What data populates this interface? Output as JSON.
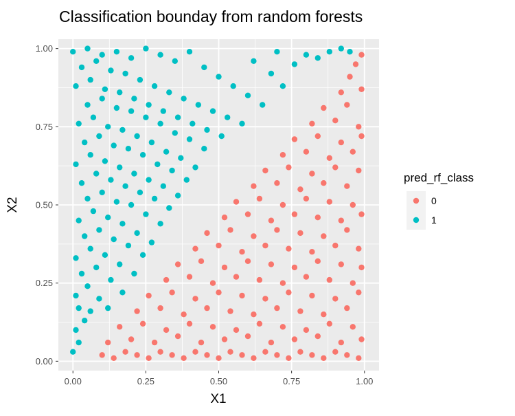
{
  "chart_data": {
    "type": "scatter",
    "title": "Classification bounday from random forests",
    "xlabel": "X1",
    "ylabel": "X2",
    "xlim": [
      -0.05,
      1.05
    ],
    "ylim": [
      -0.03,
      1.03
    ],
    "x_ticks": [
      0.0,
      0.25,
      0.5,
      0.75,
      1.0
    ],
    "y_ticks": [
      0.0,
      0.25,
      0.5,
      0.75,
      1.0
    ],
    "x_tick_labels": [
      "0.00",
      "0.25",
      "0.50",
      "0.75",
      "1.00"
    ],
    "y_tick_labels": [
      "0.00",
      "0.25",
      "0.50",
      "0.75",
      "1.00"
    ],
    "grid": true,
    "legend": {
      "title": "pred_rf_class",
      "position": "right",
      "entries": [
        {
          "label": "0",
          "color": "#F8766D"
        },
        {
          "label": "1",
          "color": "#00BFC4"
        }
      ]
    },
    "colors": {
      "class_0": "#F8766D",
      "class_1": "#00BFC4",
      "panel_background": "#EBEBEB",
      "grid": "#FFFFFF"
    },
    "boundary": {
      "description": "classes split roughly along the diagonal X2 = X1 - 0.05",
      "x": [
        0.0,
        0.15,
        0.3,
        0.5,
        0.7,
        0.9,
        1.0
      ],
      "y": [
        -0.05,
        0.1,
        0.25,
        0.45,
        0.65,
        0.85,
        1.0
      ]
    },
    "series": [
      {
        "name": "0",
        "color": "#F8766D",
        "points": [
          [
            0.1,
            0.02
          ],
          [
            0.14,
            0.01
          ],
          [
            0.18,
            0.03
          ],
          [
            0.22,
            0.02
          ],
          [
            0.26,
            0.01
          ],
          [
            0.3,
            0.03
          ],
          [
            0.34,
            0.02
          ],
          [
            0.38,
            0.01
          ],
          [
            0.42,
            0.03
          ],
          [
            0.46,
            0.02
          ],
          [
            0.5,
            0.01
          ],
          [
            0.54,
            0.03
          ],
          [
            0.58,
            0.02
          ],
          [
            0.62,
            0.01
          ],
          [
            0.66,
            0.03
          ],
          [
            0.7,
            0.02
          ],
          [
            0.74,
            0.01
          ],
          [
            0.78,
            0.03
          ],
          [
            0.82,
            0.02
          ],
          [
            0.86,
            0.01
          ],
          [
            0.9,
            0.03
          ],
          [
            0.94,
            0.02
          ],
          [
            0.98,
            0.01
          ],
          [
            0.12,
            0.06
          ],
          [
            0.2,
            0.07
          ],
          [
            0.28,
            0.06
          ],
          [
            0.36,
            0.08
          ],
          [
            0.44,
            0.06
          ],
          [
            0.52,
            0.07
          ],
          [
            0.6,
            0.08
          ],
          [
            0.68,
            0.06
          ],
          [
            0.76,
            0.07
          ],
          [
            0.84,
            0.08
          ],
          [
            0.92,
            0.06
          ],
          [
            0.99,
            0.07
          ],
          [
            0.16,
            0.11
          ],
          [
            0.24,
            0.12
          ],
          [
            0.32,
            0.1
          ],
          [
            0.4,
            0.12
          ],
          [
            0.48,
            0.11
          ],
          [
            0.56,
            0.1
          ],
          [
            0.64,
            0.12
          ],
          [
            0.72,
            0.11
          ],
          [
            0.8,
            0.1
          ],
          [
            0.88,
            0.12
          ],
          [
            0.96,
            0.11
          ],
          [
            0.22,
            0.16
          ],
          [
            0.3,
            0.17
          ],
          [
            0.38,
            0.15
          ],
          [
            0.46,
            0.17
          ],
          [
            0.54,
            0.16
          ],
          [
            0.62,
            0.15
          ],
          [
            0.7,
            0.17
          ],
          [
            0.78,
            0.16
          ],
          [
            0.86,
            0.15
          ],
          [
            0.94,
            0.17
          ],
          [
            0.26,
            0.21
          ],
          [
            0.34,
            0.22
          ],
          [
            0.42,
            0.2
          ],
          [
            0.5,
            0.22
          ],
          [
            0.58,
            0.21
          ],
          [
            0.66,
            0.2
          ],
          [
            0.74,
            0.22
          ],
          [
            0.82,
            0.21
          ],
          [
            0.9,
            0.2
          ],
          [
            0.98,
            0.22
          ],
          [
            0.32,
            0.26
          ],
          [
            0.4,
            0.27
          ],
          [
            0.48,
            0.25
          ],
          [
            0.56,
            0.27
          ],
          [
            0.64,
            0.26
          ],
          [
            0.72,
            0.25
          ],
          [
            0.8,
            0.27
          ],
          [
            0.88,
            0.26
          ],
          [
            0.96,
            0.25
          ],
          [
            0.36,
            0.31
          ],
          [
            0.44,
            0.32
          ],
          [
            0.52,
            0.3
          ],
          [
            0.6,
            0.32
          ],
          [
            0.68,
            0.31
          ],
          [
            0.76,
            0.3
          ],
          [
            0.84,
            0.32
          ],
          [
            0.92,
            0.31
          ],
          [
            0.99,
            0.3
          ],
          [
            0.42,
            0.36
          ],
          [
            0.5,
            0.37
          ],
          [
            0.58,
            0.35
          ],
          [
            0.66,
            0.37
          ],
          [
            0.74,
            0.36
          ],
          [
            0.82,
            0.35
          ],
          [
            0.9,
            0.37
          ],
          [
            0.98,
            0.36
          ],
          [
            0.46,
            0.41
          ],
          [
            0.54,
            0.42
          ],
          [
            0.62,
            0.4
          ],
          [
            0.7,
            0.42
          ],
          [
            0.78,
            0.41
          ],
          [
            0.86,
            0.4
          ],
          [
            0.94,
            0.42
          ],
          [
            0.52,
            0.46
          ],
          [
            0.6,
            0.47
          ],
          [
            0.68,
            0.45
          ],
          [
            0.76,
            0.47
          ],
          [
            0.84,
            0.46
          ],
          [
            0.92,
            0.45
          ],
          [
            0.99,
            0.47
          ],
          [
            0.56,
            0.51
          ],
          [
            0.64,
            0.52
          ],
          [
            0.72,
            0.5
          ],
          [
            0.8,
            0.52
          ],
          [
            0.88,
            0.51
          ],
          [
            0.96,
            0.5
          ],
          [
            0.62,
            0.56
          ],
          [
            0.7,
            0.57
          ],
          [
            0.78,
            0.55
          ],
          [
            0.86,
            0.57
          ],
          [
            0.94,
            0.56
          ],
          [
            0.66,
            0.61
          ],
          [
            0.74,
            0.62
          ],
          [
            0.82,
            0.6
          ],
          [
            0.9,
            0.62
          ],
          [
            0.98,
            0.61
          ],
          [
            0.72,
            0.66
          ],
          [
            0.8,
            0.67
          ],
          [
            0.88,
            0.65
          ],
          [
            0.96,
            0.67
          ],
          [
            0.76,
            0.71
          ],
          [
            0.84,
            0.72
          ],
          [
            0.92,
            0.7
          ],
          [
            0.99,
            0.72
          ],
          [
            0.82,
            0.76
          ],
          [
            0.9,
            0.77
          ],
          [
            0.98,
            0.75
          ],
          [
            0.86,
            0.81
          ],
          [
            0.94,
            0.82
          ],
          [
            0.92,
            0.86
          ],
          [
            0.99,
            0.87
          ],
          [
            0.95,
            0.91
          ],
          [
            0.97,
            0.95
          ],
          [
            0.99,
            0.98
          ]
        ]
      },
      {
        "name": "1",
        "color": "#00BFC4",
        "points": [
          [
            0.0,
            0.03
          ],
          [
            0.02,
            0.06
          ],
          [
            0.01,
            0.1
          ],
          [
            0.04,
            0.13
          ],
          [
            0.02,
            0.17
          ],
          [
            0.06,
            0.16
          ],
          [
            0.01,
            0.21
          ],
          [
            0.05,
            0.24
          ],
          [
            0.09,
            0.2
          ],
          [
            0.12,
            0.17
          ],
          [
            0.03,
            0.28
          ],
          [
            0.08,
            0.3
          ],
          [
            0.13,
            0.26
          ],
          [
            0.17,
            0.22
          ],
          [
            0.01,
            0.33
          ],
          [
            0.06,
            0.36
          ],
          [
            0.11,
            0.34
          ],
          [
            0.16,
            0.31
          ],
          [
            0.21,
            0.28
          ],
          [
            0.04,
            0.4
          ],
          [
            0.09,
            0.42
          ],
          [
            0.14,
            0.39
          ],
          [
            0.19,
            0.37
          ],
          [
            0.24,
            0.34
          ],
          [
            0.02,
            0.45
          ],
          [
            0.07,
            0.48
          ],
          [
            0.12,
            0.46
          ],
          [
            0.17,
            0.44
          ],
          [
            0.22,
            0.41
          ],
          [
            0.27,
            0.38
          ],
          [
            0.05,
            0.52
          ],
          [
            0.1,
            0.54
          ],
          [
            0.15,
            0.51
          ],
          [
            0.2,
            0.5
          ],
          [
            0.25,
            0.47
          ],
          [
            0.3,
            0.44
          ],
          [
            0.03,
            0.57
          ],
          [
            0.08,
            0.6
          ],
          [
            0.13,
            0.58
          ],
          [
            0.18,
            0.56
          ],
          [
            0.23,
            0.54
          ],
          [
            0.28,
            0.52
          ],
          [
            0.33,
            0.49
          ],
          [
            0.01,
            0.63
          ],
          [
            0.06,
            0.66
          ],
          [
            0.11,
            0.64
          ],
          [
            0.16,
            0.62
          ],
          [
            0.21,
            0.6
          ],
          [
            0.26,
            0.58
          ],
          [
            0.31,
            0.56
          ],
          [
            0.36,
            0.53
          ],
          [
            0.04,
            0.7
          ],
          [
            0.09,
            0.72
          ],
          [
            0.14,
            0.69
          ],
          [
            0.19,
            0.68
          ],
          [
            0.24,
            0.66
          ],
          [
            0.29,
            0.63
          ],
          [
            0.34,
            0.61
          ],
          [
            0.39,
            0.58
          ],
          [
            0.02,
            0.76
          ],
          [
            0.07,
            0.78
          ],
          [
            0.12,
            0.75
          ],
          [
            0.17,
            0.74
          ],
          [
            0.22,
            0.72
          ],
          [
            0.27,
            0.7
          ],
          [
            0.32,
            0.67
          ],
          [
            0.37,
            0.65
          ],
          [
            0.42,
            0.62
          ],
          [
            0.05,
            0.82
          ],
          [
            0.1,
            0.84
          ],
          [
            0.15,
            0.81
          ],
          [
            0.2,
            0.8
          ],
          [
            0.25,
            0.78
          ],
          [
            0.3,
            0.76
          ],
          [
            0.35,
            0.73
          ],
          [
            0.4,
            0.71
          ],
          [
            0.45,
            0.68
          ],
          [
            0.01,
            0.88
          ],
          [
            0.06,
            0.9
          ],
          [
            0.11,
            0.87
          ],
          [
            0.16,
            0.86
          ],
          [
            0.21,
            0.84
          ],
          [
            0.26,
            0.82
          ],
          [
            0.31,
            0.8
          ],
          [
            0.36,
            0.78
          ],
          [
            0.41,
            0.76
          ],
          [
            0.46,
            0.74
          ],
          [
            0.51,
            0.72
          ],
          [
            0.03,
            0.94
          ],
          [
            0.08,
            0.96
          ],
          [
            0.13,
            0.93
          ],
          [
            0.18,
            0.92
          ],
          [
            0.23,
            0.9
          ],
          [
            0.28,
            0.88
          ],
          [
            0.33,
            0.86
          ],
          [
            0.38,
            0.84
          ],
          [
            0.43,
            0.82
          ],
          [
            0.48,
            0.8
          ],
          [
            0.53,
            0.78
          ],
          [
            0.58,
            0.76
          ],
          [
            0.0,
            0.99
          ],
          [
            0.05,
            1.0
          ],
          [
            0.1,
            0.98
          ],
          [
            0.15,
            0.99
          ],
          [
            0.2,
            0.97
          ],
          [
            0.25,
            1.0
          ],
          [
            0.3,
            0.98
          ],
          [
            0.35,
            0.96
          ],
          [
            0.4,
            0.99
          ],
          [
            0.45,
            0.94
          ],
          [
            0.5,
            0.91
          ],
          [
            0.55,
            0.88
          ],
          [
            0.6,
            0.85
          ],
          [
            0.65,
            0.82
          ],
          [
            0.62,
            0.96
          ],
          [
            0.68,
            0.92
          ],
          [
            0.72,
            0.88
          ],
          [
            0.7,
            0.99
          ],
          [
            0.76,
            0.95
          ],
          [
            0.8,
            0.98
          ],
          [
            0.84,
            0.97
          ],
          [
            0.88,
            0.99
          ],
          [
            0.92,
            1.0
          ],
          [
            0.95,
            0.99
          ]
        ]
      }
    ]
  }
}
